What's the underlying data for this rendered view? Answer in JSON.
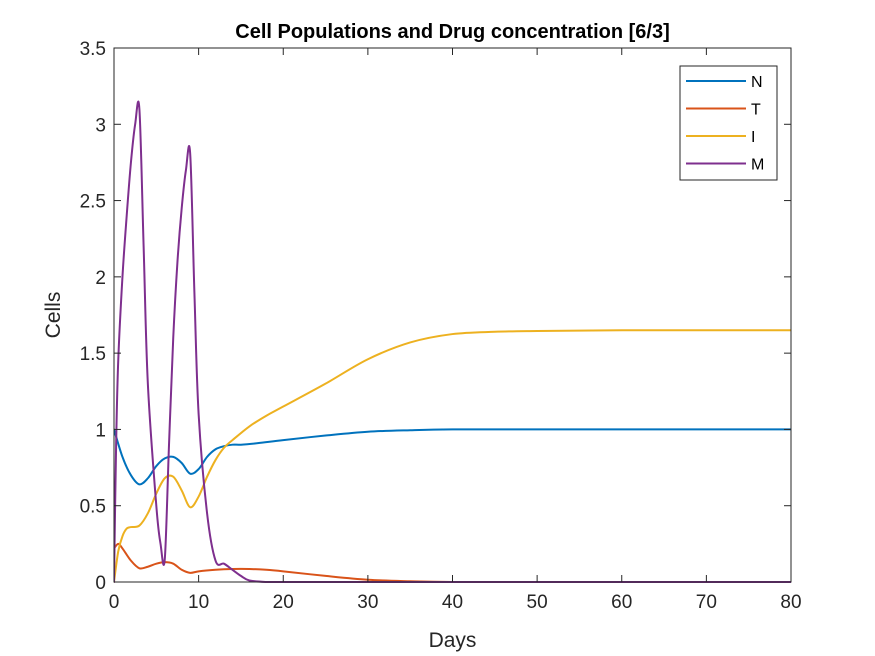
{
  "chart_data": {
    "type": "line",
    "title": "Cell Populations and Drug concentration [6/3]",
    "xlabel": "Days",
    "ylabel": "Cells",
    "xlim": [
      0,
      80
    ],
    "ylim": [
      0,
      3.5
    ],
    "xticks": [
      0,
      10,
      20,
      30,
      40,
      50,
      60,
      70,
      80
    ],
    "xtick_labels": [
      "0",
      "10",
      "20",
      "30",
      "40",
      "50",
      "60",
      "70",
      "80"
    ],
    "yticks": [
      0,
      0.5,
      1,
      1.5,
      2,
      2.5,
      3,
      3.5
    ],
    "ytick_labels": [
      "0",
      "0.5",
      "1",
      "1.5",
      "2",
      "2.5",
      "3",
      "3.5"
    ],
    "grid": false,
    "legend_position": "top-right",
    "series": [
      {
        "name": "N",
        "color": "#0072BD",
        "x": [
          0,
          1,
          2,
          3,
          4,
          5,
          6,
          7,
          8,
          9,
          10,
          11,
          12,
          13,
          14,
          15,
          17,
          20,
          25,
          30,
          35,
          40,
          50,
          60,
          70,
          80
        ],
        "y": [
          1.0,
          0.82,
          0.7,
          0.64,
          0.68,
          0.76,
          0.81,
          0.82,
          0.78,
          0.71,
          0.74,
          0.82,
          0.87,
          0.89,
          0.9,
          0.9,
          0.91,
          0.93,
          0.96,
          0.985,
          0.995,
          1.0,
          1.0,
          1.0,
          1.0,
          1.0
        ]
      },
      {
        "name": "T",
        "color": "#D95319",
        "x": [
          0,
          0.5,
          1,
          2,
          3,
          4,
          5,
          6,
          7,
          8,
          9,
          10,
          12,
          14,
          16,
          18,
          20,
          25,
          30,
          35,
          40,
          50,
          60,
          70,
          80
        ],
        "y": [
          0.22,
          0.25,
          0.22,
          0.14,
          0.09,
          0.1,
          0.12,
          0.13,
          0.12,
          0.08,
          0.06,
          0.07,
          0.08,
          0.085,
          0.085,
          0.08,
          0.07,
          0.04,
          0.015,
          0.005,
          0.0,
          0.0,
          0.0,
          0.0,
          0.0
        ]
      },
      {
        "name": "I",
        "color": "#EDB120",
        "x": [
          0,
          0.5,
          1,
          1.5,
          2,
          3,
          4,
          5,
          6,
          7,
          8,
          9,
          10,
          11,
          12,
          13,
          14,
          16,
          18,
          20,
          25,
          30,
          35,
          40,
          45,
          50,
          60,
          70,
          80
        ],
        "y": [
          0.0,
          0.2,
          0.3,
          0.35,
          0.36,
          0.37,
          0.45,
          0.58,
          0.68,
          0.69,
          0.6,
          0.49,
          0.56,
          0.69,
          0.8,
          0.88,
          0.93,
          1.02,
          1.09,
          1.15,
          1.3,
          1.46,
          1.57,
          1.625,
          1.64,
          1.645,
          1.65,
          1.65,
          1.65
        ]
      },
      {
        "name": "M",
        "color": "#7E2F8E",
        "x": [
          0,
          0.25,
          0.5,
          1,
          1.5,
          2,
          2.5,
          3,
          3.5,
          4,
          5,
          5.5,
          6,
          6.5,
          7,
          7.5,
          8,
          8.5,
          9,
          9.5,
          10,
          11,
          12,
          13,
          14,
          15,
          16,
          18,
          20,
          25,
          30,
          40,
          50,
          60,
          70,
          80
        ],
        "y": [
          0.0,
          0.9,
          1.45,
          2.0,
          2.4,
          2.75,
          3.0,
          3.1,
          2.2,
          1.3,
          0.5,
          0.25,
          0.15,
          0.9,
          1.6,
          2.1,
          2.45,
          2.7,
          2.81,
          1.9,
          1.1,
          0.45,
          0.14,
          0.12,
          0.08,
          0.04,
          0.01,
          0.0,
          0.0,
          0.0,
          0.0,
          0.0,
          0.0,
          0.0,
          0.0,
          0.0
        ]
      }
    ]
  }
}
